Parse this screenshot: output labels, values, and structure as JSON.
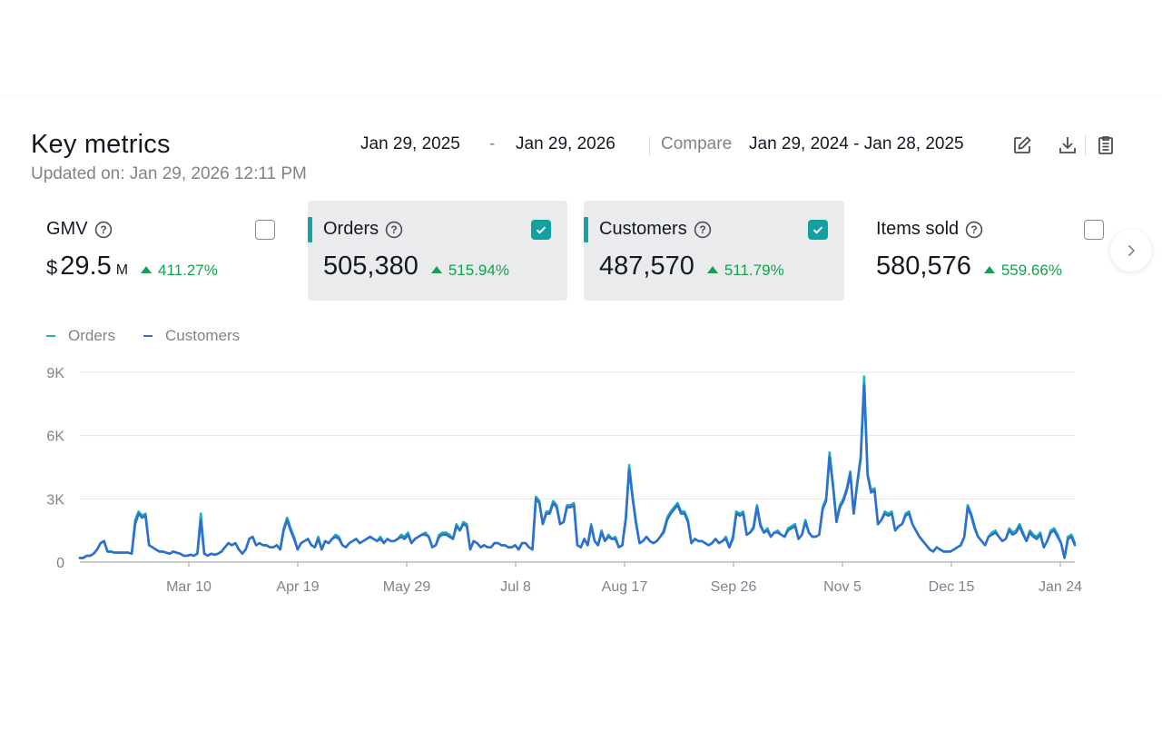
{
  "header": {
    "title": "Key metrics",
    "updated": "Updated on: Jan 29, 2026 12:11 PM",
    "date_start": "Jan 29, 2025",
    "date_sep": "-",
    "date_end": "Jan 29, 2026",
    "compare_label": "Compare",
    "compare_range": "Jan 29, 2024 - Jan 28, 2025",
    "icons": [
      "edit-icon",
      "download-icon",
      "clipboard-icon"
    ]
  },
  "cards": [
    {
      "label": "GMV",
      "currency": "$",
      "value": "29.5",
      "unit": "M",
      "delta": "411.27%",
      "selected": false
    },
    {
      "label": "Orders",
      "value": "505,380",
      "delta": "515.94%",
      "selected": true
    },
    {
      "label": "Customers",
      "value": "487,570",
      "delta": "511.79%",
      "selected": true
    },
    {
      "label": "Items sold",
      "value": "580,576",
      "delta": "559.66%",
      "selected": false
    }
  ],
  "colors": {
    "orders": "#1fb3b0",
    "customers": "#2f6fd1",
    "accent": "#12a19f",
    "positive": "#15a04f"
  },
  "chart_data": {
    "type": "line",
    "x_ticks": [
      "Mar 10",
      "Apr 19",
      "May 29",
      "Jul 8",
      "Aug 17",
      "Sep 26",
      "Nov 5",
      "Dec 15",
      "Jan 24"
    ],
    "y_ticks": [
      "9K",
      "6K",
      "3K",
      "0"
    ],
    "ylim": [
      0,
      9000
    ],
    "grid": true,
    "legend_position": "top-left",
    "series": [
      {
        "name": "Orders",
        "color": "#1fb3b0",
        "values": [
          200,
          200,
          300,
          300,
          400,
          600,
          900,
          1000,
          500,
          500,
          450,
          450,
          450,
          450,
          450,
          400,
          2000,
          2400,
          2200,
          2300,
          800,
          700,
          600,
          500,
          500,
          450,
          400,
          500,
          450,
          400,
          300,
          300,
          350,
          300,
          400,
          2300,
          400,
          300,
          400,
          350,
          400,
          500,
          700,
          900,
          800,
          900,
          600,
          400,
          600,
          1100,
          1200,
          800,
          900,
          800,
          800,
          700,
          700,
          800,
          600,
          1600,
          2100,
          1600,
          1200,
          600,
          900,
          1000,
          1100,
          800,
          700,
          1200,
          600,
          1000,
          900,
          1100,
          1300,
          1200,
          800,
          700,
          900,
          1000,
          1100,
          900,
          1000,
          1100,
          1200,
          1100,
          1000,
          1200,
          900,
          1100,
          1000,
          1000,
          1100,
          1300,
          1200,
          1400,
          900,
          1100,
          1200,
          1300,
          1400,
          1200,
          700,
          800,
          1300,
          1400,
          1400,
          1300,
          1100,
          1800,
          1500,
          1900,
          1800,
          600,
          1000,
          900,
          700,
          800,
          700,
          700,
          900,
          900,
          800,
          800,
          700,
          700,
          800,
          600,
          900,
          900,
          700,
          600,
          3100,
          2900,
          1800,
          2400,
          2400,
          2900,
          2700,
          1800,
          1900,
          2700,
          2700,
          2800,
          800,
          700,
          1100,
          800,
          1800,
          1000,
          800,
          1500,
          1000,
          1300,
          1100,
          1200,
          700,
          800,
          2100,
          4600,
          3100,
          1900,
          900,
          1000,
          1200,
          1000,
          900,
          1000,
          1200,
          1500,
          2100,
          2400,
          2600,
          2800,
          2400,
          2400,
          2000,
          900,
          1100,
          1000,
          1000,
          900,
          800,
          900,
          1100,
          900,
          1000,
          1200,
          700,
          1200,
          2400,
          2300,
          2400,
          1300,
          1400,
          1700,
          2700,
          1800,
          1400,
          1600,
          1200,
          1400,
          1500,
          1300,
          1200,
          1600,
          1700,
          1800,
          1100,
          1300,
          2000,
          1400,
          1200,
          1200,
          1300,
          2600,
          3000,
          5200,
          3700,
          2000,
          2700,
          3000,
          3500,
          4300,
          2300,
          3800,
          5000,
          8800,
          4200,
          3400,
          3500,
          1800,
          2000,
          2400,
          2300,
          2400,
          1500,
          1700,
          1800,
          2300,
          2400,
          1800,
          1500,
          1200,
          1000,
          800,
          600,
          500,
          700,
          600,
          500,
          500,
          500,
          600,
          700,
          800,
          1200,
          2700,
          2300,
          1700,
          1200,
          1000,
          800,
          1200,
          1400,
          1500,
          1200,
          1000,
          1100,
          1600,
          1400,
          1500,
          1800,
          1400,
          1000,
          1500,
          1300,
          1200,
          1400,
          700,
          1000,
          1500,
          1600,
          1300,
          900,
          200,
          1200,
          1300,
          900
        ]
      },
      {
        "name": "Customers",
        "color": "#2f6fd1",
        "values": [
          200,
          200,
          300,
          300,
          400,
          600,
          900,
          1000,
          500,
          500,
          450,
          450,
          450,
          450,
          450,
          400,
          1800,
          2300,
          2100,
          2200,
          800,
          700,
          600,
          500,
          500,
          450,
          400,
          500,
          450,
          400,
          300,
          300,
          350,
          300,
          400,
          2000,
          400,
          300,
          400,
          350,
          400,
          500,
          700,
          900,
          800,
          900,
          600,
          400,
          600,
          1100,
          1200,
          800,
          900,
          800,
          800,
          700,
          700,
          800,
          600,
          1500,
          2000,
          1500,
          1100,
          600,
          900,
          1000,
          1100,
          800,
          700,
          1100,
          600,
          1000,
          900,
          1100,
          1200,
          1100,
          800,
          700,
          900,
          1000,
          1100,
          900,
          1000,
          1100,
          1200,
          1100,
          1000,
          1100,
          900,
          1100,
          1000,
          1000,
          1100,
          1200,
          1100,
          1300,
          900,
          1100,
          1200,
          1300,
          1300,
          1200,
          700,
          800,
          1200,
          1300,
          1300,
          1200,
          1100,
          1700,
          1500,
          1800,
          1700,
          600,
          1000,
          900,
          700,
          800,
          700,
          700,
          900,
          900,
          800,
          800,
          700,
          700,
          800,
          600,
          900,
          900,
          700,
          600,
          3000,
          2800,
          1800,
          2300,
          2300,
          2800,
          2600,
          1800,
          1900,
          2600,
          2600,
          2700,
          800,
          700,
          1100,
          800,
          1700,
          1000,
          800,
          1400,
          1000,
          1200,
          1100,
          1100,
          700,
          800,
          2000,
          4400,
          3000,
          1800,
          900,
          1000,
          1200,
          1000,
          900,
          1000,
          1200,
          1400,
          2000,
          2300,
          2500,
          2700,
          2300,
          2300,
          1900,
          900,
          1100,
          1000,
          1000,
          900,
          800,
          900,
          1100,
          900,
          1000,
          1100,
          700,
          1100,
          2300,
          2200,
          2300,
          1300,
          1400,
          1600,
          2600,
          1700,
          1400,
          1500,
          1200,
          1400,
          1400,
          1300,
          1200,
          1500,
          1600,
          1700,
          1100,
          1300,
          1900,
          1400,
          1200,
          1200,
          1300,
          2500,
          2900,
          5000,
          3600,
          1900,
          2600,
          2900,
          3400,
          4200,
          2300,
          3700,
          4900,
          8400,
          4100,
          3300,
          3400,
          1800,
          2000,
          2300,
          2200,
          2300,
          1500,
          1700,
          1800,
          2200,
          2300,
          1800,
          1500,
          1200,
          1000,
          800,
          600,
          500,
          700,
          600,
          500,
          500,
          500,
          600,
          700,
          800,
          1200,
          2600,
          2200,
          1600,
          1200,
          1000,
          800,
          1200,
          1300,
          1400,
          1200,
          1000,
          1100,
          1500,
          1300,
          1400,
          1700,
          1300,
          1000,
          1400,
          1200,
          1100,
          1300,
          700,
          1000,
          1400,
          1500,
          1200,
          900,
          200,
          1100,
          1200,
          800
        ]
      }
    ]
  }
}
